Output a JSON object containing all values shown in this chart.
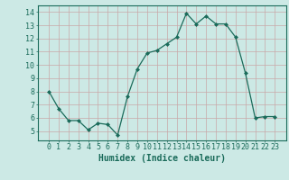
{
  "x": [
    0,
    1,
    2,
    3,
    4,
    5,
    6,
    7,
    8,
    9,
    10,
    11,
    12,
    13,
    14,
    15,
    16,
    17,
    18,
    19,
    20,
    21,
    22,
    23
  ],
  "y": [
    8.0,
    6.7,
    5.8,
    5.8,
    5.1,
    5.6,
    5.5,
    4.7,
    7.6,
    9.7,
    10.9,
    11.1,
    11.6,
    12.1,
    13.9,
    13.1,
    13.7,
    13.1,
    13.1,
    12.1,
    9.4,
    6.0,
    6.1,
    6.1
  ],
  "line_color": "#1a6b5a",
  "marker": "D",
  "marker_size": 2,
  "bg_color": "#cce9e5",
  "grid_color": "#c9a8a8",
  "xlabel": "Humidex (Indice chaleur)",
  "xlabel_fontsize": 7,
  "tick_fontsize": 6,
  "ylim": [
    4.3,
    14.5
  ],
  "yticks": [
    5,
    6,
    7,
    8,
    9,
    10,
    11,
    12,
    13,
    14
  ],
  "xticks": [
    0,
    1,
    2,
    3,
    4,
    5,
    6,
    7,
    8,
    9,
    10,
    11,
    12,
    13,
    14,
    15,
    16,
    17,
    18,
    19,
    20,
    21,
    22,
    23
  ]
}
